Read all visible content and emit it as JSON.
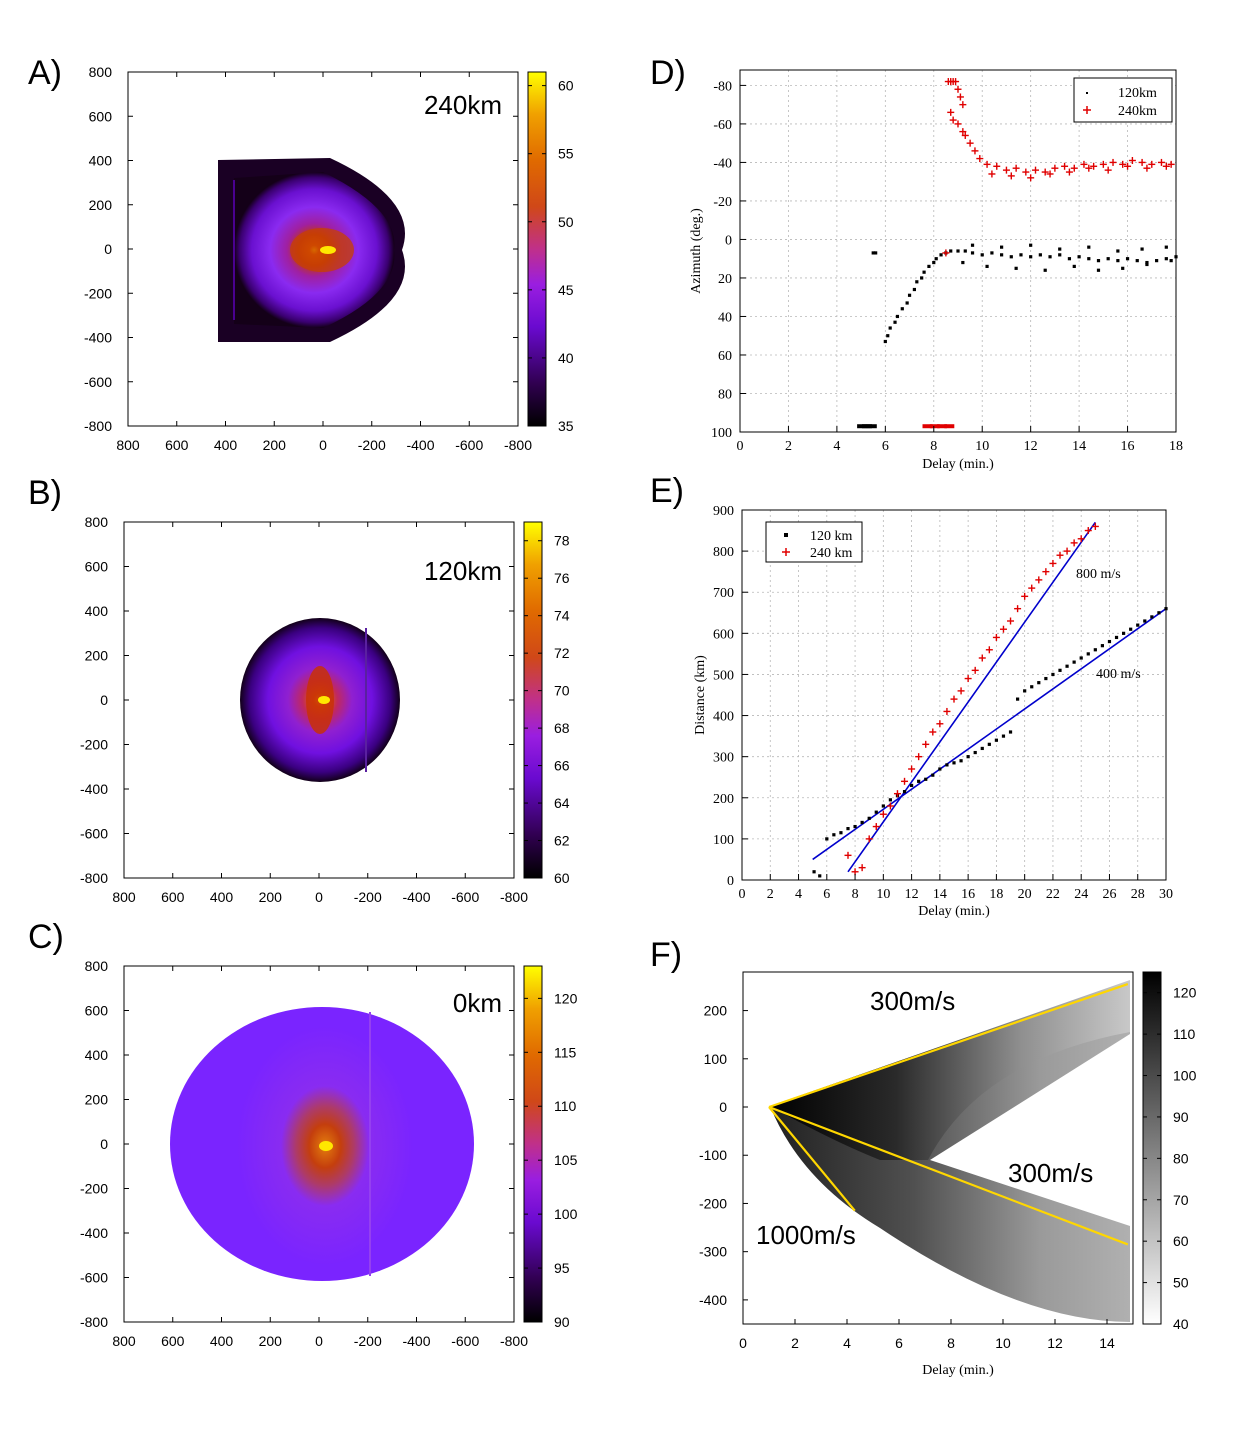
{
  "chart_data": [
    {
      "id": "A",
      "panel_label": "A)",
      "type": "heatmap",
      "title": "240km",
      "xlim": [
        800,
        -800
      ],
      "ylim": [
        -800,
        800
      ],
      "xticks": [
        "800",
        "600",
        "400",
        "200",
        "0",
        "-200",
        "-400",
        "-600",
        "-800"
      ],
      "yticks": [
        "800",
        "600",
        "400",
        "200",
        "0",
        "-200",
        "-400",
        "-600",
        "-800"
      ],
      "colorbar": {
        "min": 35,
        "max": 61,
        "ticks": [
          "60",
          "55",
          "50",
          "45",
          "40",
          "35"
        ],
        "colormap": "gnuplot"
      },
      "field": {
        "center_value": 61,
        "edge_value": 35,
        "shape": "D-shaped, flat side toward x=+400, radius about 400 km"
      }
    },
    {
      "id": "B",
      "panel_label": "B)",
      "type": "heatmap",
      "title": "120km",
      "xlim": [
        800,
        -800
      ],
      "ylim": [
        -800,
        800
      ],
      "xticks": [
        "800",
        "600",
        "400",
        "200",
        "0",
        "-200",
        "-400",
        "-600",
        "-800"
      ],
      "yticks": [
        "800",
        "600",
        "400",
        "200",
        "0",
        "-200",
        "-400",
        "-600",
        "-800"
      ],
      "colorbar": {
        "min": 60,
        "max": 79,
        "ticks": [
          "78",
          "76",
          "74",
          "72",
          "70",
          "68",
          "66",
          "64",
          "62",
          "60"
        ],
        "colormap": "gnuplot"
      },
      "field": {
        "center_value": 79,
        "edge_value": 60,
        "shape": "disc, radius about 360 km"
      }
    },
    {
      "id": "C",
      "panel_label": "C)",
      "type": "heatmap",
      "title": "0km",
      "xlim": [
        800,
        -800
      ],
      "ylim": [
        -800,
        800
      ],
      "xticks": [
        "800",
        "600",
        "400",
        "200",
        "0",
        "-200",
        "-400",
        "-600",
        "-800"
      ],
      "yticks": [
        "800",
        "600",
        "400",
        "200",
        "0",
        "-200",
        "-400",
        "-600",
        "-800"
      ],
      "colorbar": {
        "min": 90,
        "max": 123,
        "ticks": [
          "120",
          "115",
          "110",
          "105",
          "100",
          "95",
          "90"
        ],
        "colormap": "gnuplot"
      },
      "field": {
        "center_value": 123,
        "edge_value": 98,
        "shape": "ellipse, x radius about 620 km, y radius about 620 km"
      }
    },
    {
      "id": "D",
      "panel_label": "D)",
      "type": "scatter",
      "title": "",
      "xlabel": "Delay (min.)",
      "ylabel": "Azimuth (deg.)",
      "xlim": [
        0,
        18
      ],
      "ylim": [
        100,
        -88
      ],
      "xticks": [
        "0",
        "2",
        "4",
        "6",
        "8",
        "10",
        "12",
        "14",
        "16",
        "18"
      ],
      "yticks": [
        "-80",
        "-60",
        "-40",
        "-20",
        "0",
        "20",
        "40",
        "60",
        "80",
        "100"
      ],
      "legend": {
        "position": "top-right",
        "entries": [
          "120km",
          "240km"
        ]
      },
      "series": [
        {
          "name": "120km",
          "color": "#000000",
          "marker": "dot",
          "x": [
            5.5,
            5.6,
            6.0,
            6.1,
            6.2,
            6.4,
            6.5,
            6.7,
            6.9,
            7.0,
            7.2,
            7.3,
            7.5,
            7.6,
            7.8,
            8.0,
            8.1,
            8.3,
            8.5,
            8.7,
            9.0,
            9.3,
            9.6,
            10.0,
            10.4,
            10.8,
            11.2,
            11.6,
            12.0,
            12.4,
            12.8,
            13.2,
            13.6,
            14.0,
            14.4,
            14.8,
            15.2,
            15.6,
            16.0,
            16.4,
            16.8,
            17.2,
            17.6,
            18.0,
            9.2,
            10.2,
            11.4,
            12.6,
            13.8,
            14.8,
            15.8,
            16.8,
            17.8,
            9.6,
            10.8,
            12.0,
            13.2,
            14.4,
            15.6,
            16.6,
            17.6
          ],
          "y": [
            7,
            7,
            53,
            50,
            46,
            43,
            40,
            36,
            33,
            29,
            26,
            22,
            20,
            17,
            14,
            12,
            10,
            8,
            7,
            6,
            6,
            6,
            7,
            8,
            7,
            8,
            9,
            8,
            9,
            8,
            9,
            8,
            10,
            9,
            10,
            11,
            10,
            11,
            10,
            11,
            12,
            11,
            10,
            9,
            12,
            14,
            15,
            16,
            14,
            16,
            15,
            13,
            11,
            3,
            4,
            3,
            5,
            4,
            6,
            5,
            4
          ]
        },
        {
          "name": "240km",
          "color": "#e00000",
          "marker": "plus",
          "x": [
            8.6,
            8.7,
            8.8,
            8.9,
            9.0,
            9.1,
            9.2,
            8.7,
            8.8,
            9.0,
            9.2,
            9.3,
            9.5,
            9.7,
            9.9,
            10.2,
            10.6,
            11.0,
            11.4,
            11.8,
            12.2,
            12.6,
            13.0,
            13.4,
            13.8,
            14.2,
            14.6,
            15.0,
            15.4,
            15.8,
            16.2,
            16.6,
            17.0,
            17.4,
            17.8,
            10.4,
            11.2,
            12.0,
            12.8,
            13.6,
            14.4,
            15.2,
            16.0,
            16.8,
            17.6,
            8.5
          ],
          "y": [
            -82,
            -82,
            -82,
            -82,
            -78,
            -74,
            -70,
            -66,
            -62,
            -60,
            -56,
            -54,
            -50,
            -46,
            -42,
            -39,
            -38,
            -36,
            -37,
            -35,
            -36,
            -35,
            -37,
            -38,
            -37,
            -39,
            -38,
            -39,
            -40,
            -39,
            -41,
            -40,
            -39,
            -40,
            -39,
            -34,
            -33,
            -32,
            -34,
            -35,
            -37,
            -36,
            -38,
            -37,
            -38,
            7
          ]
        },
        {
          "name": "120km-floor",
          "color": "#000000",
          "marker": "bar",
          "x": [
            5.0,
            5.2,
            5.4
          ],
          "y": [
            97,
            97,
            97
          ]
        },
        {
          "name": "240km-floor",
          "color": "#e00000",
          "marker": "bar",
          "x": [
            7.7,
            8.0,
            8.3,
            8.6
          ],
          "y": [
            97,
            97,
            97,
            97
          ]
        }
      ]
    },
    {
      "id": "E",
      "panel_label": "E)",
      "type": "scatter",
      "title": "",
      "xlabel": "Delay (min.)",
      "ylabel": "Distance (km)",
      "xlim": [
        0,
        30
      ],
      "ylim": [
        0,
        900
      ],
      "xticks": [
        "0",
        "2",
        "4",
        "6",
        "8",
        "10",
        "12",
        "14",
        "16",
        "18",
        "20",
        "22",
        "24",
        "26",
        "28",
        "30"
      ],
      "yticks": [
        "0",
        "100",
        "200",
        "300",
        "400",
        "500",
        "600",
        "700",
        "800",
        "900"
      ],
      "legend": {
        "position": "top-left",
        "entries": [
          "120 km",
          "240 km"
        ]
      },
      "annotations": [
        "800 m/s",
        "400 m/s"
      ],
      "fits": [
        {
          "label": "800 m/s",
          "color": "#0000cc",
          "x": [
            7.5,
            25.0
          ],
          "y": [
            20,
            870
          ]
        },
        {
          "label": "400 m/s",
          "color": "#0000cc",
          "x": [
            5.0,
            30.0
          ],
          "y": [
            50,
            660
          ]
        }
      ],
      "series": [
        {
          "name": "120 km",
          "color": "#000000",
          "marker": "dot",
          "x": [
            5.1,
            5.5,
            6.0,
            6.5,
            7.0,
            7.5,
            8.0,
            8.5,
            9.0,
            9.5,
            10.0,
            10.5,
            11.0,
            11.5,
            12.0,
            12.5,
            13.0,
            13.5,
            14.0,
            14.5,
            15.0,
            15.5,
            16.0,
            16.5,
            17.0,
            17.5,
            18.0,
            18.5,
            19.0,
            19.5,
            20.0,
            20.5,
            21.0,
            21.5,
            22.0,
            22.5,
            23.0,
            23.5,
            24.0,
            24.5,
            25.0,
            25.5,
            26.0,
            26.5,
            27.0,
            27.5,
            28.0,
            28.5,
            29.0,
            29.5,
            30.0
          ],
          "y": [
            20,
            10,
            100,
            110,
            115,
            125,
            130,
            140,
            150,
            165,
            180,
            195,
            205,
            215,
            230,
            240,
            245,
            255,
            270,
            280,
            285,
            290,
            300,
            310,
            320,
            330,
            340,
            350,
            360,
            440,
            460,
            470,
            480,
            490,
            500,
            510,
            520,
            530,
            540,
            550,
            560,
            570,
            580,
            590,
            600,
            610,
            620,
            630,
            640,
            650,
            660
          ]
        },
        {
          "name": "240 km",
          "color": "#e00000",
          "marker": "plus",
          "x": [
            7.5,
            8.0,
            8.5,
            9.0,
            9.5,
            10.0,
            10.5,
            11.0,
            11.5,
            12.0,
            12.5,
            13.0,
            13.5,
            14.0,
            14.5,
            15.0,
            15.5,
            16.0,
            16.5,
            17.0,
            17.5,
            18.0,
            18.5,
            19.0,
            19.5,
            20.0,
            20.5,
            21.0,
            21.5,
            22.0,
            22.5,
            23.0,
            23.5,
            24.0,
            24.5,
            25.0
          ],
          "y": [
            60,
            20,
            30,
            100,
            130,
            160,
            180,
            210,
            240,
            270,
            300,
            330,
            360,
            380,
            410,
            440,
            460,
            490,
            510,
            540,
            560,
            590,
            610,
            630,
            660,
            690,
            710,
            730,
            750,
            770,
            790,
            800,
            820,
            830,
            850,
            860
          ]
        }
      ]
    },
    {
      "id": "F",
      "panel_label": "F)",
      "type": "heatmap",
      "title": "",
      "xlabel": "Delay (min.)",
      "xlim": [
        0,
        15
      ],
      "ylim": [
        -450,
        280
      ],
      "xticks": [
        "0",
        "2",
        "4",
        "6",
        "8",
        "10",
        "12",
        "14"
      ],
      "yticks": [
        "200",
        "100",
        "0",
        "-100",
        "-200",
        "-300",
        "-400"
      ],
      "colorbar": {
        "min": 40,
        "max": 125,
        "ticks": [
          "120",
          "110",
          "100",
          "90",
          "80",
          "70",
          "60",
          "50",
          "40"
        ],
        "colormap": "gray-inverted"
      },
      "annotations": [
        "300m/s",
        "300m/s",
        "1000m/s"
      ],
      "fits": [
        {
          "label": "300m/s",
          "color": "#ffd700",
          "x": [
            1.0,
            14.8
          ],
          "y": [
            0,
            255
          ]
        },
        {
          "label": "300m/s",
          "color": "#ffd700",
          "x": [
            1.0,
            14.8
          ],
          "y": [
            0,
            -285
          ]
        },
        {
          "label": "1000m/s",
          "color": "#ffd700",
          "x": [
            1.0,
            4.3
          ],
          "y": [
            0,
            -215
          ]
        }
      ]
    }
  ]
}
